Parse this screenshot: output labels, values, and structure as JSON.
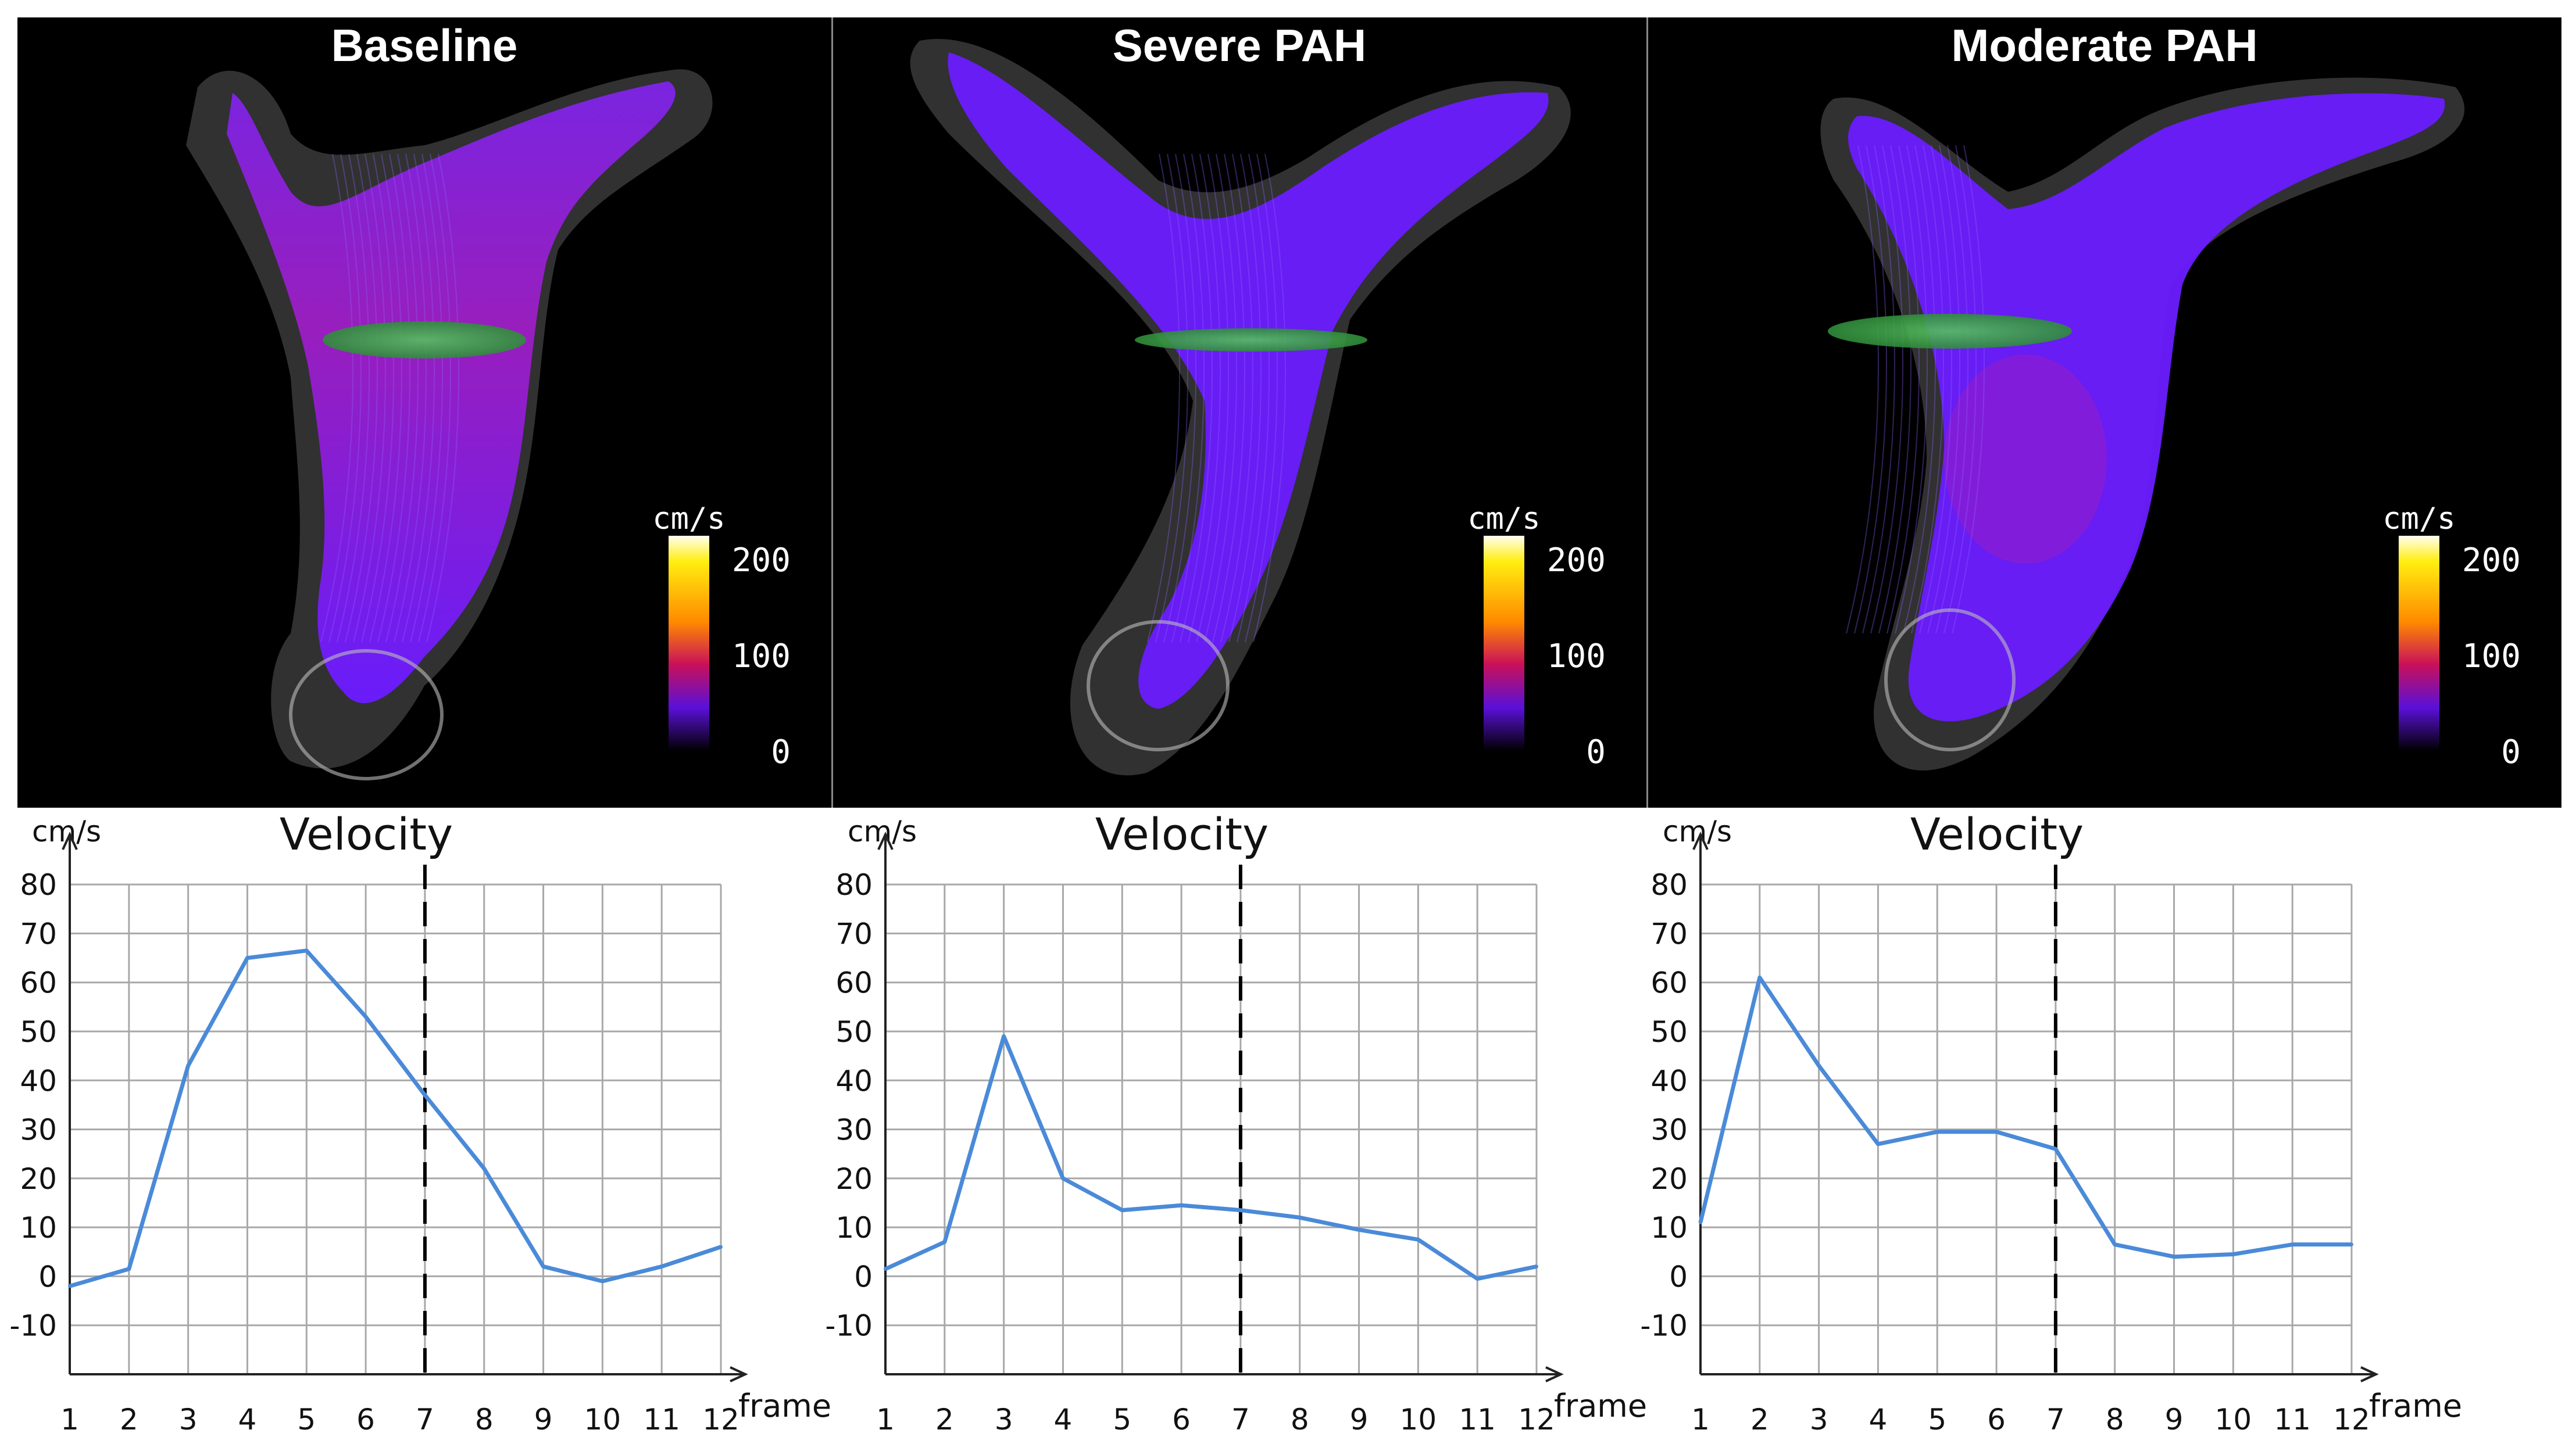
{
  "panels": [
    {
      "title": "Baseline",
      "colorbar": {
        "unit": "cm/s",
        "ticks": [
          "200",
          "100",
          "0"
        ]
      },
      "variant": "baseline"
    },
    {
      "title": "Severe PAH",
      "colorbar": {
        "unit": "cm/s",
        "ticks": [
          "200",
          "100",
          "0"
        ]
      },
      "variant": "severe"
    },
    {
      "title": "Moderate PAH",
      "colorbar": {
        "unit": "cm/s",
        "ticks": [
          "200",
          "100",
          "0"
        ]
      },
      "variant": "moderate"
    }
  ],
  "colors": {
    "background_3d": "#000000",
    "flow": "#6a1cff",
    "flow_hot": "#d0208a",
    "plane": "#3fae4a",
    "line": "#4a8ad8",
    "grid": "#a8a8a8",
    "axis": "#222222",
    "marker": "#000000"
  },
  "chart_data": [
    {
      "type": "line",
      "title": "Velocity",
      "ylabel": "cm/s",
      "xlabel": "frame",
      "x": [
        1,
        2,
        3,
        4,
        5,
        6,
        7,
        8,
        9,
        10,
        11,
        12
      ],
      "values": [
        -2,
        1.5,
        43,
        65,
        66.5,
        53,
        37,
        22,
        2,
        -1,
        2,
        6
      ],
      "yticks": [
        80,
        70,
        60,
        50,
        40,
        30,
        20,
        10,
        0,
        -10
      ],
      "ylim": [
        -20,
        85
      ],
      "xlim": [
        1,
        12
      ],
      "grid": true,
      "marker_x": 7
    },
    {
      "type": "line",
      "title": "Velocity",
      "ylabel": "cm/s",
      "xlabel": "frame",
      "x": [
        1,
        2,
        3,
        4,
        5,
        6,
        7,
        8,
        9,
        10,
        11,
        12
      ],
      "values": [
        1.5,
        7,
        49,
        20,
        13.5,
        14.5,
        13.5,
        12,
        9.5,
        7.5,
        -0.5,
        2
      ],
      "yticks": [
        80,
        70,
        60,
        50,
        40,
        30,
        20,
        10,
        0,
        -10
      ],
      "ylim": [
        -20,
        85
      ],
      "xlim": [
        1,
        12
      ],
      "grid": true,
      "marker_x": 7
    },
    {
      "type": "line",
      "title": "Velocity",
      "ylabel": "cm/s",
      "xlabel": "frame",
      "x": [
        1,
        2,
        3,
        4,
        5,
        6,
        7,
        8,
        9,
        10,
        11,
        12
      ],
      "values": [
        11,
        61,
        43,
        27,
        29.5,
        29.5,
        26,
        6.5,
        4,
        4.5,
        6.5,
        6.5
      ],
      "yticks": [
        80,
        70,
        60,
        50,
        40,
        30,
        20,
        10,
        0,
        -10
      ],
      "ylim": [
        -20,
        85
      ],
      "xlim": [
        1,
        12
      ],
      "grid": true,
      "marker_x": 7
    }
  ]
}
